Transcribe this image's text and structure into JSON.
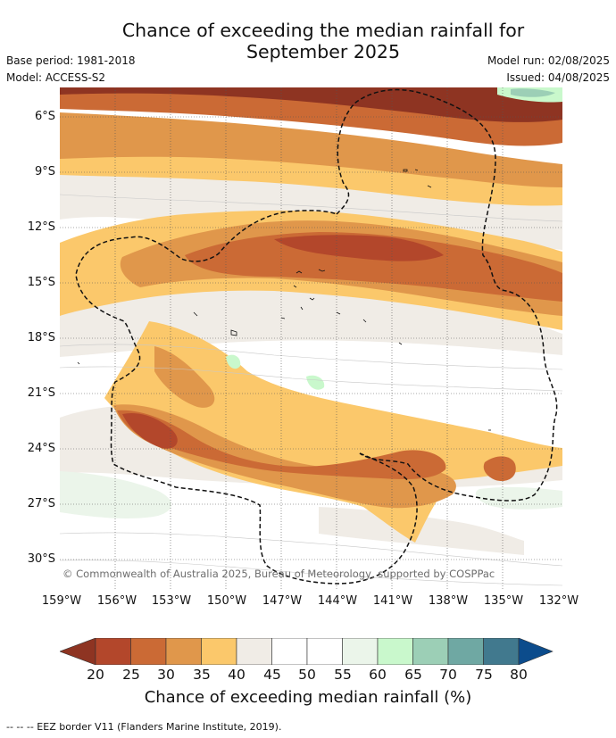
{
  "title": {
    "line1": "Chance of exceeding the median rainfall for",
    "line2": "September 2025"
  },
  "info": {
    "base_period": "Base period: 1981-2018",
    "model": "Model: ACCESS-S2",
    "model_run": "Model run: 02/08/2025",
    "issued": "Issued: 04/08/2025"
  },
  "map": {
    "copyright": "© Commonwealth of Australia 2025, Bureau of Meteorology, supported by COSPPac",
    "lat_labels": [
      "6°S",
      "9°S",
      "12°S",
      "15°S",
      "18°S",
      "21°S",
      "24°S",
      "27°S",
      "30°S"
    ],
    "lon_labels": [
      "159°W",
      "156°W",
      "153°W",
      "150°W",
      "147°W",
      "144°W",
      "141°W",
      "138°W",
      "135°W",
      "132°W"
    ],
    "border_style": "dashed",
    "border_color": "#111111",
    "grid": "dotted"
  },
  "colorbar": {
    "title": "Chance of exceeding median rainfall (%)",
    "ticks": [
      "20",
      "25",
      "30",
      "35",
      "40",
      "45",
      "50",
      "55",
      "60",
      "65",
      "70",
      "75",
      "80"
    ],
    "colors": [
      "#8e3422",
      "#b3472b",
      "#cb6a35",
      "#e0974b",
      "#fbc86b",
      "#f0ece6",
      "#ffffff",
      "#ffffff",
      "#ebf5ea",
      "#c9f8cc",
      "#9ccfb6",
      "#6fa8a3",
      "#41798e",
      "#0c4c8c"
    ]
  },
  "footnote": "--  --  -- EEZ border V11 (Flanders Marine Institute, 2019)."
}
